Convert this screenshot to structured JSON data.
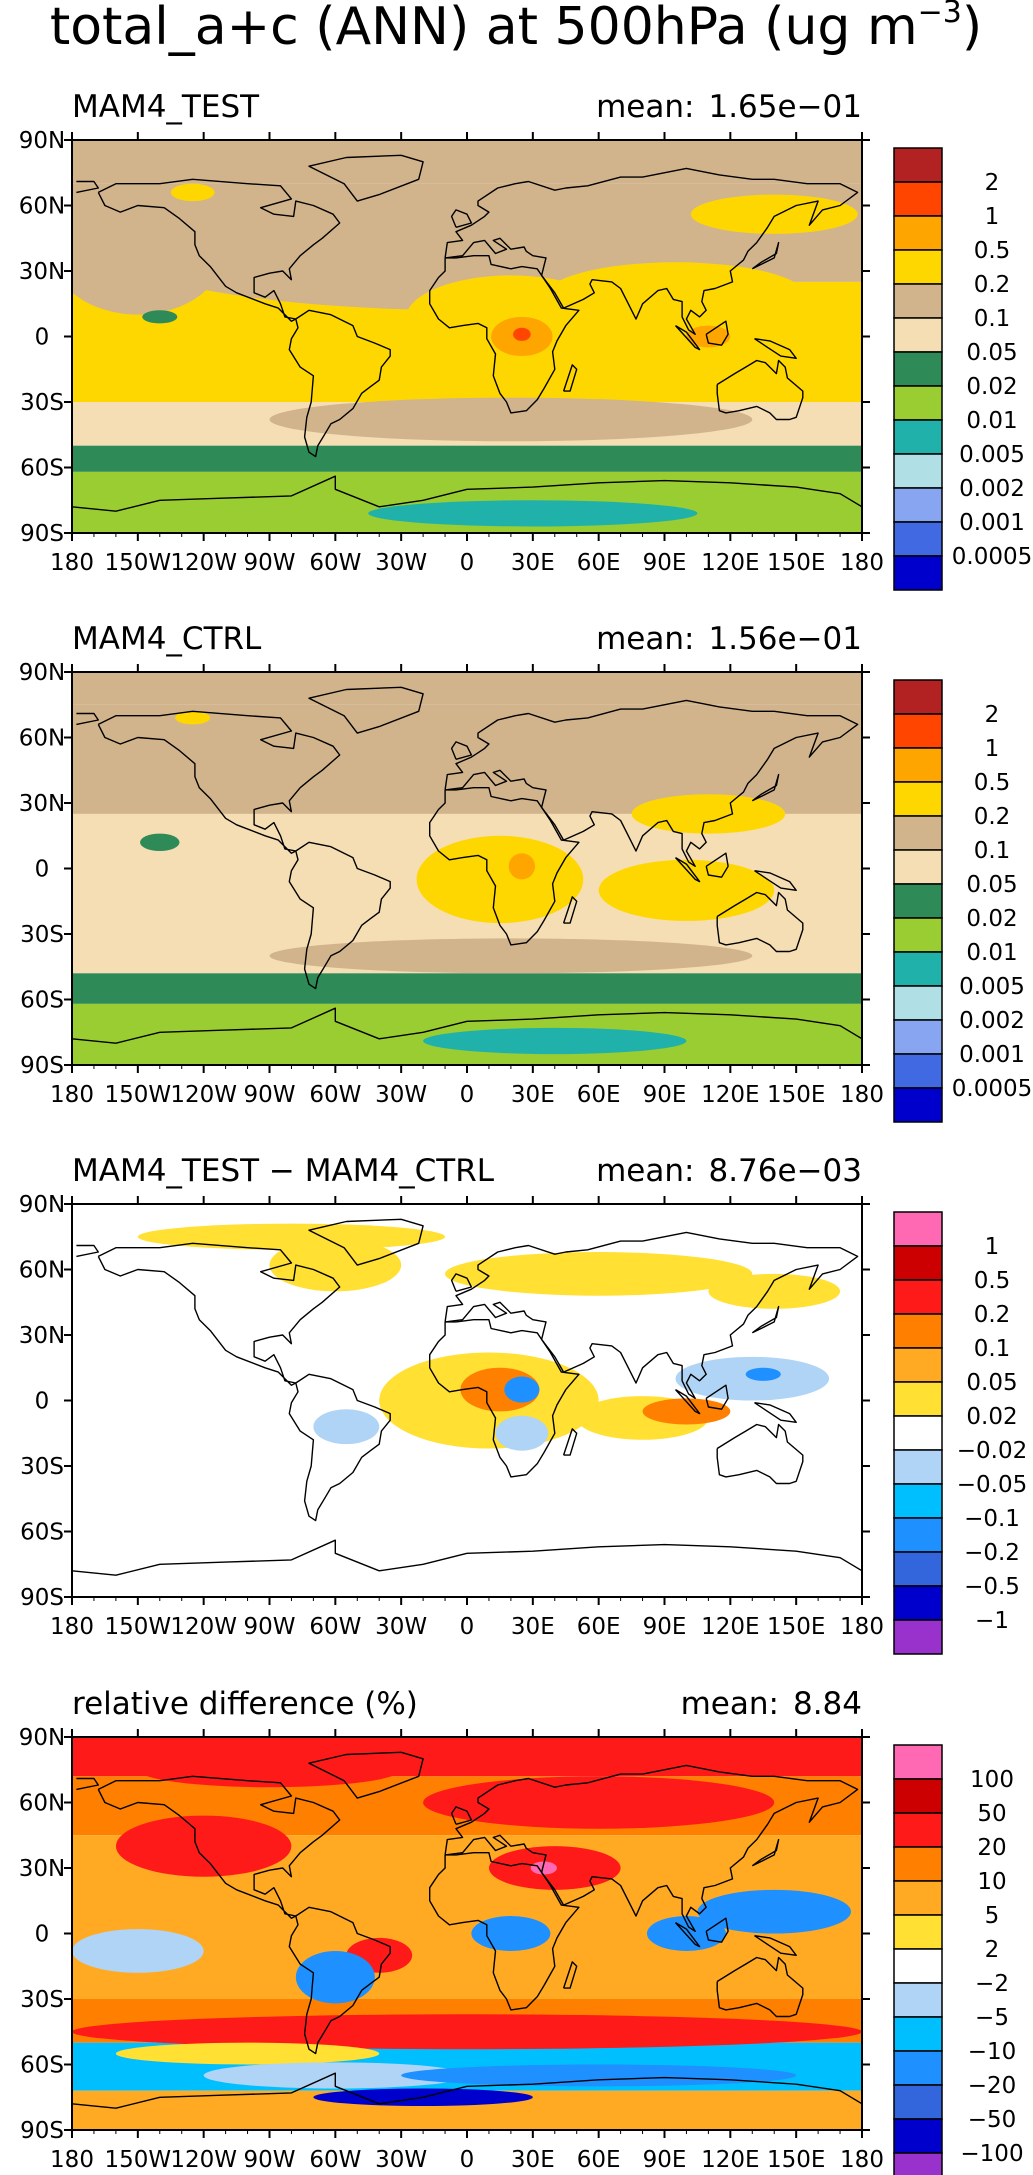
{
  "figure": {
    "title_main": "total_a+c (ANN) at 500hPa (ug m",
    "title_exp": "−3",
    "title_end": ")"
  },
  "chart_data": [
    {
      "type": "heatmap",
      "name": "test",
      "title": "MAM4_TEST",
      "mean_label": "mean:",
      "mean_value": "1.65e−01",
      "x_ticks": [
        "180",
        "150W",
        "120W",
        "90W",
        "60W",
        "30W",
        "0",
        "30E",
        "60E",
        "90E",
        "120E",
        "150E",
        "180"
      ],
      "y_ticks": [
        "90N",
        "60N",
        "30N",
        "0",
        "30S",
        "60S",
        "90S"
      ],
      "xlim": [
        -180,
        180
      ],
      "ylim": [
        -90,
        90
      ],
      "levels": [
        "2",
        "1",
        "0.5",
        "0.2",
        "0.1",
        "0.05",
        "0.02",
        "0.01",
        "0.005",
        "0.002",
        "0.001",
        "0.0005"
      ],
      "colors": [
        "#b22222",
        "#ff4500",
        "#ffa500",
        "#ffd700",
        "#d2b48c",
        "#f5deb3",
        "#2e8b57",
        "#9acd32",
        "#20b2aa",
        "#b0e0e6",
        "#87a5f0",
        "#4169e1",
        "#0000cd"
      ],
      "features": [
        {
          "k": "tan",
          "lon": 0,
          "lat": 40,
          "rx": 160,
          "ry": 28
        },
        {
          "k": "tan",
          "lon": -150,
          "lat": 40,
          "rx": 40,
          "ry": 30
        },
        {
          "k": "tan",
          "lon": 20,
          "lat": -38,
          "rx": 110,
          "ry": 10
        },
        {
          "k": "yel",
          "lon": 20,
          "lat": 8,
          "rx": 48,
          "ry": 20
        },
        {
          "k": "yel",
          "lon": 95,
          "lat": 18,
          "rx": 60,
          "ry": 16
        },
        {
          "k": "yel",
          "lon": 100,
          "lat": -12,
          "rx": 55,
          "ry": 14
        },
        {
          "k": "yel",
          "lon": 140,
          "lat": 56,
          "rx": 38,
          "ry": 9
        },
        {
          "k": "yel",
          "lon": -55,
          "lat": -16,
          "rx": 22,
          "ry": 14
        },
        {
          "k": "yel",
          "lon": -125,
          "lat": 66,
          "rx": 10,
          "ry": 4
        },
        {
          "k": "ora",
          "lon": 25,
          "lat": 0,
          "rx": 14,
          "ry": 9
        },
        {
          "k": "ora",
          "lon": 110,
          "lat": 0,
          "rx": 10,
          "ry": 5
        },
        {
          "k": "red",
          "lon": 25,
          "lat": 1,
          "rx": 4,
          "ry": 3
        },
        {
          "k": "dgr",
          "lon": -140,
          "lat": 9,
          "rx": 8,
          "ry": 3
        },
        {
          "k": "tea",
          "lon": 30,
          "lat": -81,
          "rx": 75,
          "ry": 6
        }
      ]
    },
    {
      "type": "heatmap",
      "name": "ctrl",
      "title": "MAM4_CTRL",
      "mean_label": "mean:",
      "mean_value": "1.56e−01",
      "x_ticks": [
        "180",
        "150W",
        "120W",
        "90W",
        "60W",
        "30W",
        "0",
        "30E",
        "60E",
        "90E",
        "120E",
        "150E",
        "180"
      ],
      "y_ticks": [
        "90N",
        "60N",
        "30N",
        "0",
        "30S",
        "60S",
        "90S"
      ],
      "xlim": [
        -180,
        180
      ],
      "ylim": [
        -90,
        90
      ],
      "levels": [
        "2",
        "1",
        "0.5",
        "0.2",
        "0.1",
        "0.05",
        "0.02",
        "0.01",
        "0.005",
        "0.002",
        "0.001",
        "0.0005"
      ],
      "colors": [
        "#b22222",
        "#ff4500",
        "#ffa500",
        "#ffd700",
        "#d2b48c",
        "#f5deb3",
        "#2e8b57",
        "#9acd32",
        "#20b2aa",
        "#b0e0e6",
        "#87a5f0",
        "#4169e1",
        "#0000cd"
      ],
      "features": [
        {
          "k": "tan",
          "lon": 10,
          "lat": 48,
          "rx": 150,
          "ry": 22
        },
        {
          "k": "tan",
          "lon": -160,
          "lat": 48,
          "rx": 30,
          "ry": 22
        },
        {
          "k": "tan",
          "lon": 20,
          "lat": -40,
          "rx": 110,
          "ry": 8
        },
        {
          "k": "yel",
          "lon": 15,
          "lat": -5,
          "rx": 38,
          "ry": 20
        },
        {
          "k": "yel",
          "lon": 100,
          "lat": -10,
          "rx": 40,
          "ry": 14
        },
        {
          "k": "yel",
          "lon": 110,
          "lat": 25,
          "rx": 35,
          "ry": 9
        },
        {
          "k": "yel",
          "lon": -125,
          "lat": 69,
          "rx": 8,
          "ry": 3
        },
        {
          "k": "ora",
          "lon": 25,
          "lat": 1,
          "rx": 6,
          "ry": 6
        },
        {
          "k": "dgr",
          "lon": -140,
          "lat": 12,
          "rx": 9,
          "ry": 4
        },
        {
          "k": "tea",
          "lon": 40,
          "lat": -79,
          "rx": 60,
          "ry": 6
        }
      ]
    },
    {
      "type": "heatmap",
      "name": "diff",
      "title": "MAM4_TEST − MAM4_CTRL",
      "mean_label": "mean:",
      "mean_value": "8.76e−03",
      "x_ticks": [
        "180",
        "150W",
        "120W",
        "90W",
        "60W",
        "30W",
        "0",
        "30E",
        "60E",
        "90E",
        "120E",
        "150E",
        "180"
      ],
      "y_ticks": [
        "90N",
        "60N",
        "30N",
        "0",
        "30S",
        "60S",
        "90S"
      ],
      "xlim": [
        -180,
        180
      ],
      "ylim": [
        -90,
        90
      ],
      "levels": [
        "1",
        "0.5",
        "0.2",
        "0.1",
        "0.05",
        "0.02",
        "−0.02",
        "−0.05",
        "−0.1",
        "−0.2",
        "−0.5",
        "−1"
      ],
      "colors": [
        "#ff69b4",
        "#cc0000",
        "#ff1a1a",
        "#ff7f00",
        "#ffaa22",
        "#ffe033",
        "#ffffff",
        "#b0d4f5",
        "#00bfff",
        "#1e90ff",
        "#3366dd",
        "#0000cd",
        "#9932cc"
      ],
      "features": [
        {
          "k": "yel",
          "lon": -80,
          "lat": 75,
          "rx": 70,
          "ry": 6
        },
        {
          "k": "yel",
          "lon": -60,
          "lat": 62,
          "rx": 30,
          "ry": 12
        },
        {
          "k": "yel",
          "lon": 60,
          "lat": 58,
          "rx": 70,
          "ry": 10
        },
        {
          "k": "yel",
          "lon": 10,
          "lat": 0,
          "rx": 50,
          "ry": 22
        },
        {
          "k": "yel",
          "lon": 80,
          "lat": -8,
          "rx": 30,
          "ry": 10
        },
        {
          "k": "yel",
          "lon": 140,
          "lat": 50,
          "rx": 30,
          "ry": 8
        },
        {
          "k": "ora",
          "lon": 15,
          "lat": 5,
          "rx": 18,
          "ry": 10
        },
        {
          "k": "ora",
          "lon": 100,
          "lat": -5,
          "rx": 20,
          "ry": 6
        },
        {
          "k": "lbl",
          "lon": 130,
          "lat": 10,
          "rx": 35,
          "ry": 10
        },
        {
          "k": "lbl",
          "lon": -55,
          "lat": -12,
          "rx": 15,
          "ry": 8
        },
        {
          "k": "lbl",
          "lon": 25,
          "lat": -15,
          "rx": 12,
          "ry": 8
        },
        {
          "k": "blu",
          "lon": 25,
          "lat": 5,
          "rx": 8,
          "ry": 6
        },
        {
          "k": "blu",
          "lon": 135,
          "lat": 12,
          "rx": 8,
          "ry": 3
        }
      ]
    },
    {
      "type": "heatmap",
      "name": "rel",
      "title": "relative difference (%)",
      "mean_label": "mean:",
      "mean_value": "8.84",
      "x_ticks": [
        "180",
        "150W",
        "120W",
        "90W",
        "60W",
        "30W",
        "0",
        "30E",
        "60E",
        "90E",
        "120E",
        "150E",
        "180"
      ],
      "y_ticks": [
        "90N",
        "60N",
        "30N",
        "0",
        "30S",
        "60S",
        "90S"
      ],
      "xlim": [
        -180,
        180
      ],
      "ylim": [
        -90,
        90
      ],
      "levels": [
        "100",
        "50",
        "20",
        "10",
        "5",
        "2",
        "−2",
        "−5",
        "−10",
        "−20",
        "−50",
        "−100"
      ],
      "colors": [
        "#ff69b4",
        "#cc0000",
        "#ff1a1a",
        "#ff7f00",
        "#ffaa22",
        "#ffe033",
        "#ffffff",
        "#b0d4f5",
        "#00bfff",
        "#1e90ff",
        "#3366dd",
        "#0000cd",
        "#9932cc"
      ],
      "features": [
        {
          "k": "red",
          "lon": -90,
          "lat": 75,
          "rx": 60,
          "ry": 8
        },
        {
          "k": "red",
          "lon": 60,
          "lat": 60,
          "rx": 80,
          "ry": 12
        },
        {
          "k": "red",
          "lon": -120,
          "lat": 40,
          "rx": 40,
          "ry": 14
        },
        {
          "k": "red",
          "lon": 0,
          "lat": -45,
          "rx": 180,
          "ry": 8
        },
        {
          "k": "red",
          "lon": 40,
          "lat": 30,
          "rx": 30,
          "ry": 10
        },
        {
          "k": "red",
          "lon": -40,
          "lat": -10,
          "rx": 15,
          "ry": 8
        },
        {
          "k": "yel",
          "lon": -100,
          "lat": -55,
          "rx": 60,
          "ry": 5
        },
        {
          "k": "lbl",
          "lon": -150,
          "lat": -8,
          "rx": 30,
          "ry": 10
        },
        {
          "k": "lbl",
          "lon": -60,
          "lat": -65,
          "rx": 60,
          "ry": 6
        },
        {
          "k": "blu",
          "lon": 140,
          "lat": 10,
          "rx": 35,
          "ry": 10
        },
        {
          "k": "blu",
          "lon": -60,
          "lat": -20,
          "rx": 18,
          "ry": 12
        },
        {
          "k": "blu",
          "lon": 20,
          "lat": 0,
          "rx": 18,
          "ry": 8
        },
        {
          "k": "blu",
          "lon": 60,
          "lat": -65,
          "rx": 90,
          "ry": 5
        },
        {
          "k": "blu",
          "lon": 100,
          "lat": 0,
          "rx": 18,
          "ry": 8
        },
        {
          "k": "dbl",
          "lon": -20,
          "lat": -75,
          "rx": 50,
          "ry": 4
        },
        {
          "k": "pnk",
          "lon": 35,
          "lat": 30,
          "rx": 6,
          "ry": 3
        }
      ]
    }
  ]
}
